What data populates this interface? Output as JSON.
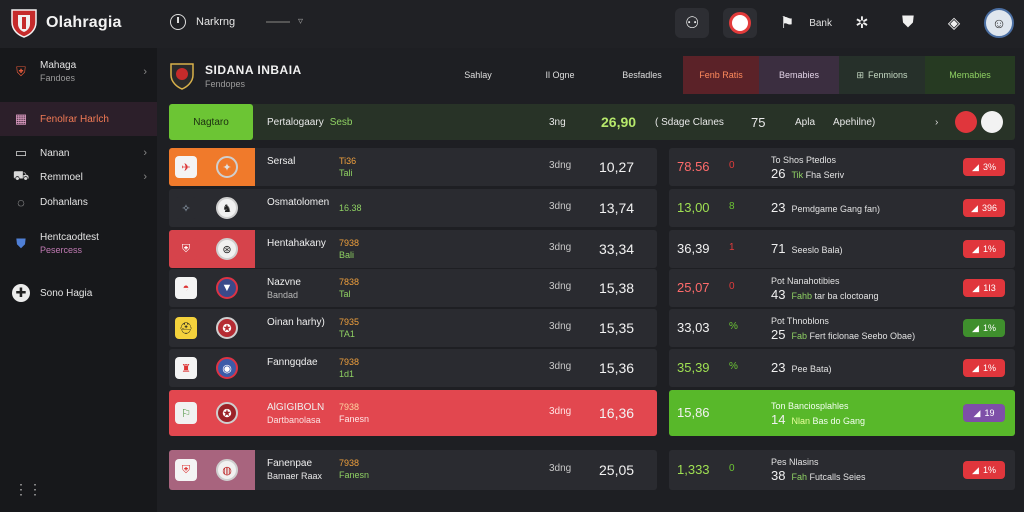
{
  "app": {
    "title": "Olahragia"
  },
  "top_nav": {
    "label": "Narkrng",
    "dropdown": "▿"
  },
  "top_actions": {
    "label": "Bank"
  },
  "sidebar": {
    "items": [
      {
        "label": "Mahaga",
        "sub": "Fandoes"
      },
      {
        "label": "Fenolrar Harlch"
      },
      {
        "label": "Nanan"
      },
      {
        "label": "Remmoel"
      },
      {
        "label": "Dohanlans"
      },
      {
        "label": "Hentcaodtest",
        "sub": "Pesercess"
      },
      {
        "label": "Sono Hagia"
      }
    ]
  },
  "league": {
    "title": "SIDANA INBAIA",
    "sub": "Fendopes"
  },
  "tabs": [
    "Sahlay",
    "Il Ogne",
    "Besfadles",
    "Fenb Ratis",
    "Bemabies",
    "Fenmions",
    "Memabies"
  ],
  "featured": {
    "button": "Nagtaro",
    "label": "Pertalogaary",
    "label_green": "Sesb",
    "day": "3ng",
    "value": "26,90",
    "mid": "( Sdage Clanes",
    "num": "75",
    "extra1": "Apla",
    "extra2": "Apehilne)"
  },
  "rows": [
    {
      "team": "Sersal",
      "team_sub": "",
      "mid_o": "Ti36",
      "mid_g": "Tali",
      "day": "3dng",
      "value": "10,27",
      "r_val": "78.56",
      "r_ind": "0",
      "r_num": "26",
      "r_t1": "To Shos Ptedlos",
      "r_t2": "Fha Seriv",
      "r_g": "Tik",
      "badge": "3%"
    },
    {
      "team": "Osmatolomen",
      "team_sub": "",
      "mid_o": "",
      "mid_g": "16.38",
      "day": "3dng",
      "value": "13,74",
      "r_val": "13,00",
      "r_ind": "8",
      "r_num": "23",
      "r_t1": "",
      "r_t2": "Pemdgame Gang fan)",
      "r_g": "",
      "badge": "396"
    },
    {
      "team": "Hentahakany",
      "team_sub": "",
      "mid_o": "7938",
      "mid_g": "Bali",
      "day": "3dng",
      "value": "33,34",
      "r_val": "36,39",
      "r_ind": "1",
      "r_num": "71",
      "r_t1": "",
      "r_t2": "Seeslo Bala)",
      "r_g": "",
      "badge": "1%"
    },
    {
      "team": "Nazvne",
      "team_sub": "Bandad",
      "mid_o": "7838",
      "mid_g": "Tal",
      "day": "3dng",
      "value": "15,38",
      "r_val": "25,07",
      "r_ind": "0",
      "r_num": "43",
      "r_t1": "Pot Nanahotibies",
      "r_t2": "tar ba cloctoang",
      "r_g": "Fahb",
      "badge": "1I3"
    },
    {
      "team": "Oinan harhy)",
      "team_sub": "",
      "mid_o": "7935",
      "mid_g": "TA1",
      "day": "3dng",
      "value": "15,35",
      "r_val": "33,03",
      "r_ind": "%",
      "r_num": "25",
      "r_t1": "Pot Thnoblons",
      "r_t2": "Fert ficlonae Seebo Obae)",
      "r_g": "Fab",
      "badge": "1%"
    },
    {
      "team": "Fanngqdae",
      "team_sub": "",
      "mid_o": "7938",
      "mid_g": "1d1",
      "day": "3dng",
      "value": "15,36",
      "r_val": "35,39",
      "r_ind": "%",
      "r_num": "23",
      "r_t1": "",
      "r_t2": "Pee Bata)",
      "r_g": "",
      "badge": "1%"
    },
    {
      "team": "AlGIGIBOLN",
      "team_sub": "Dartbanolasa",
      "mid_o": "7938",
      "mid_g": "Fanesn",
      "day": "3dng",
      "value": "16,36",
      "r_val": "15,86",
      "r_ind": "",
      "r_num": "14",
      "r_t1": "Ton Banciosplahles",
      "r_t2": "Bas do Gang",
      "r_g": "Nlan",
      "badge": "19"
    },
    {
      "team": "Fanenpae",
      "team_sub": "Bamaer Raax",
      "mid_o": "7938",
      "mid_g": "Fanesn",
      "day": "3dng",
      "value": "25,05",
      "r_val": "1,333",
      "r_ind": "0",
      "r_num": "38",
      "r_t1": "Pes Nlasins",
      "r_t2": "Futcalls Seies",
      "r_g": "Fah",
      "badge": "1%"
    }
  ],
  "colors": {
    "accent_red": "#e2474f",
    "accent_green": "#6cc534",
    "row_bg": "#2a2b30"
  }
}
